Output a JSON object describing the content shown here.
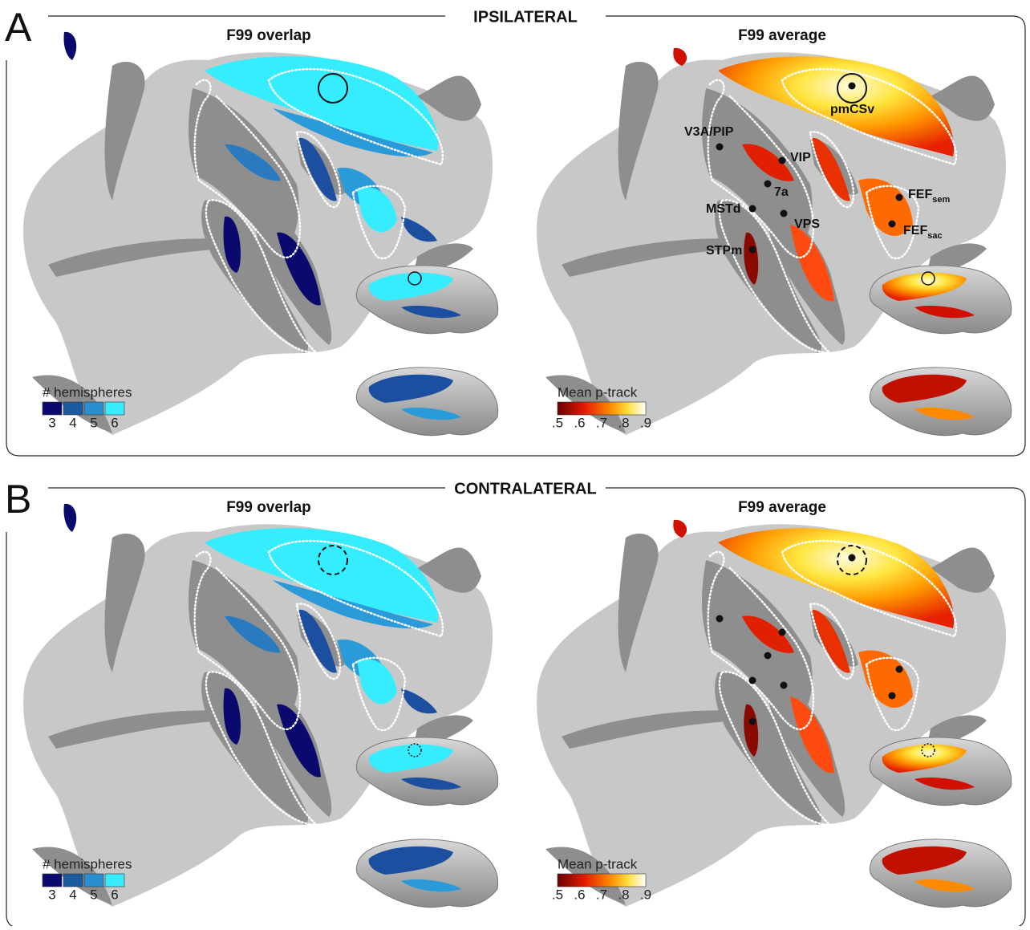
{
  "panels": [
    {
      "letter": "A",
      "title": "IPSILATERAL",
      "maps": [
        {
          "title": "F99 overlap",
          "legend": {
            "title": "# hemispheres",
            "labels": [
              "3",
              "4",
              "5",
              "6"
            ]
          }
        },
        {
          "title": "F99 average",
          "legend": {
            "title": "Mean p-track",
            "labels": [
              ".5",
              ".6",
              ".7",
              ".8",
              ".9"
            ]
          }
        }
      ],
      "region_labels": [
        {
          "main": "V3A/PIP"
        },
        {
          "main": "VIP"
        },
        {
          "main": "7a"
        },
        {
          "main": "MSTd"
        },
        {
          "main": "VPS"
        },
        {
          "main": "STPm"
        },
        {
          "main": "pmCSv"
        },
        {
          "main": "FEF",
          "sub": "sem"
        },
        {
          "main": "FEF",
          "sub": "sac"
        }
      ]
    },
    {
      "letter": "B",
      "title": "CONTRALATERAL",
      "maps": [
        {
          "title": "F99 overlap",
          "legend": {
            "title": "# hemispheres",
            "labels": [
              "3",
              "4",
              "5",
              "6"
            ]
          }
        },
        {
          "title": "F99 average",
          "legend": {
            "title": "Mean p-track",
            "labels": [
              ".5",
              ".6",
              ".7",
              ".8",
              ".9"
            ]
          }
        }
      ]
    }
  ]
}
